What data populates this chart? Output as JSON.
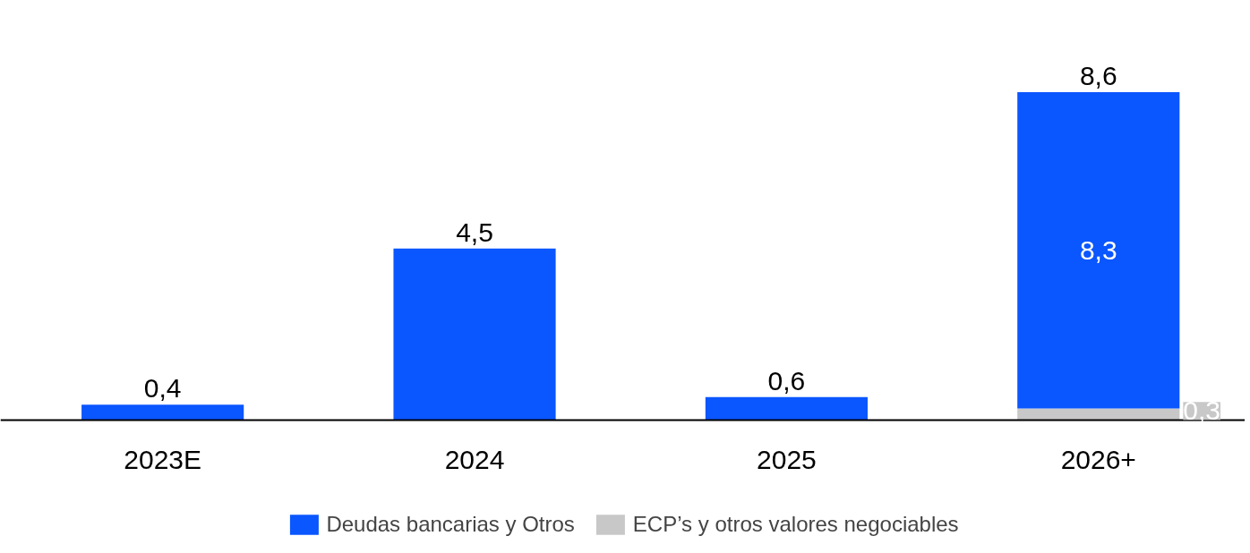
{
  "chart_data": {
    "type": "bar",
    "stacked": true,
    "categories": [
      "2023E",
      "2024",
      "2025",
      "2026+"
    ],
    "series": [
      {
        "name": "ECP’s y otros valores negociables",
        "color": "#c8c8c8",
        "values": [
          null,
          null,
          null,
          0.3
        ],
        "value_labels": [
          null,
          null,
          null,
          "0,3"
        ]
      },
      {
        "name": "Deudas bancarias y Otros",
        "color": "#0a56ff",
        "values": [
          0.4,
          4.5,
          0.6,
          8.3
        ],
        "value_labels": [
          null,
          null,
          null,
          "8,3"
        ]
      }
    ],
    "totals": [
      "0,4",
      "4,5",
      "0,6",
      "8,6"
    ],
    "legend": "bottom",
    "grid": false
  }
}
